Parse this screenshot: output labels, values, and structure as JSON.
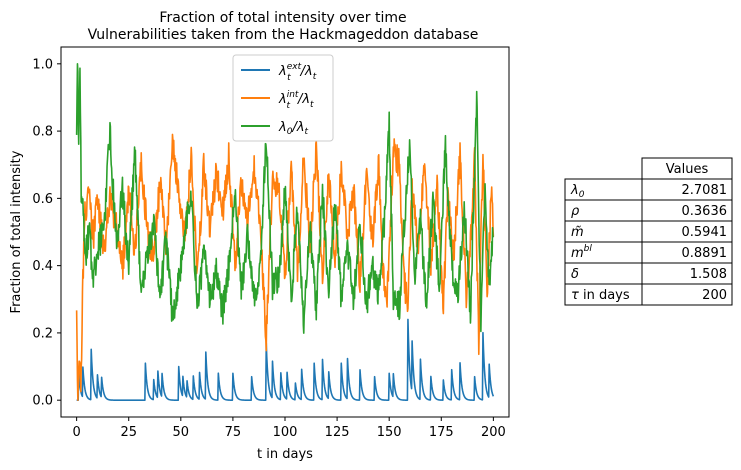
{
  "chart_data": {
    "type": "line",
    "title": "Fraction of total intensity over time",
    "subtitle": "Vulnerabilities taken from the Hackmageddon database",
    "xlabel": "t in days",
    "ylabel": "Fraction of total intensity",
    "xlim": [
      -7.5,
      207.5
    ],
    "ylim": [
      -0.05,
      1.05
    ],
    "xticks": [
      0,
      25,
      50,
      75,
      100,
      125,
      150,
      175,
      200
    ],
    "yticks": [
      0.0,
      0.2,
      0.4,
      0.6,
      0.8,
      1.0
    ],
    "xtick_labels": [
      "0",
      "25",
      "50",
      "75",
      "100",
      "125",
      "150",
      "175",
      "200"
    ],
    "ytick_labels": [
      "0.0",
      "0.2",
      "0.4",
      "0.6",
      "0.8",
      "1.0"
    ],
    "grid": false,
    "legend_position": "top-center",
    "series": [
      {
        "name": "ext",
        "label_main": "λ",
        "label_sup": "ext",
        "label_sub": "t",
        "label_tail": "/λ",
        "label_tail_sub": "t",
        "color": "#1f77b4",
        "spikes": [
          [
            1,
            0.08
          ],
          [
            3,
            0.09
          ],
          [
            7,
            0.15
          ],
          [
            10,
            0.07
          ],
          [
            12,
            0.06
          ],
          [
            33,
            0.11
          ],
          [
            37,
            0.06
          ],
          [
            39,
            0.08
          ],
          [
            41,
            0.07
          ],
          [
            49,
            0.1
          ],
          [
            51,
            0.06
          ],
          [
            53,
            0.05
          ],
          [
            56,
            0.07
          ],
          [
            59,
            0.08
          ],
          [
            62,
            0.14
          ],
          [
            68,
            0.08
          ],
          [
            75,
            0.08
          ],
          [
            84,
            0.07
          ],
          [
            91,
            0.17
          ],
          [
            94,
            0.11
          ],
          [
            98,
            0.08
          ],
          [
            101,
            0.08
          ],
          [
            105,
            0.05
          ],
          [
            108,
            0.09
          ],
          [
            114,
            0.11
          ],
          [
            118,
            0.12
          ],
          [
            121,
            0.08
          ],
          [
            127,
            0.11
          ],
          [
            130,
            0.12
          ],
          [
            136,
            0.09
          ],
          [
            143,
            0.07
          ],
          [
            150,
            0.08
          ],
          [
            152,
            0.07
          ],
          [
            159,
            0.24
          ],
          [
            161,
            0.15
          ],
          [
            165,
            0.12
          ],
          [
            170,
            0.07
          ],
          [
            176,
            0.06
          ],
          [
            180,
            0.09
          ],
          [
            184,
            0.11
          ],
          [
            191,
            0.07
          ],
          [
            195,
            0.2
          ],
          [
            198,
            0.1
          ]
        ]
      },
      {
        "name": "int",
        "label_main": "λ",
        "label_sup": "int",
        "label_sub": "t",
        "label_tail": "/λ",
        "label_tail_sub": "t",
        "color": "#ff7f0e",
        "anchors": [
          [
            0,
            0.24
          ],
          [
            0.6,
            0.0
          ],
          [
            1.2,
            0.12
          ],
          [
            2,
            0.02
          ],
          [
            3,
            0.35
          ],
          [
            4,
            0.55
          ],
          [
            6,
            0.62
          ],
          [
            8,
            0.48
          ],
          [
            10,
            0.6
          ],
          [
            13,
            0.44
          ],
          [
            16,
            0.6
          ],
          [
            19,
            0.52
          ],
          [
            22,
            0.39
          ],
          [
            25,
            0.62
          ],
          [
            28,
            0.44
          ],
          [
            31,
            0.7
          ],
          [
            34,
            0.5
          ],
          [
            37,
            0.42
          ],
          [
            40,
            0.65
          ],
          [
            43,
            0.46
          ],
          [
            46,
            0.77
          ],
          [
            49,
            0.62
          ],
          [
            52,
            0.48
          ],
          [
            55,
            0.72
          ],
          [
            58,
            0.36
          ],
          [
            61,
            0.7
          ],
          [
            64,
            0.5
          ],
          [
            67,
            0.68
          ],
          [
            70,
            0.55
          ],
          [
            73,
            0.72
          ],
          [
            76,
            0.4
          ],
          [
            79,
            0.66
          ],
          [
            82,
            0.53
          ],
          [
            85,
            0.7
          ],
          [
            88,
            0.53
          ],
          [
            91,
            0.18
          ],
          [
            94,
            0.66
          ],
          [
            97,
            0.64
          ],
          [
            100,
            0.36
          ],
          [
            103,
            0.7
          ],
          [
            106,
            0.38
          ],
          [
            109,
            0.72
          ],
          [
            112,
            0.46
          ],
          [
            115,
            0.75
          ],
          [
            118,
            0.36
          ],
          [
            121,
            0.67
          ],
          [
            124,
            0.42
          ],
          [
            127,
            0.68
          ],
          [
            130,
            0.5
          ],
          [
            133,
            0.62
          ],
          [
            136,
            0.35
          ],
          [
            139,
            0.66
          ],
          [
            142,
            0.48
          ],
          [
            145,
            0.7
          ],
          [
            147,
            0.4
          ],
          [
            149,
            0.3
          ],
          [
            152,
            0.74
          ],
          [
            155,
            0.7
          ],
          [
            157,
            0.36
          ],
          [
            159,
            0.28
          ],
          [
            161,
            0.64
          ],
          [
            164,
            0.43
          ],
          [
            167,
            0.72
          ],
          [
            170,
            0.4
          ],
          [
            173,
            0.64
          ],
          [
            176,
            0.27
          ],
          [
            178,
            0.6
          ],
          [
            181,
            0.44
          ],
          [
            184,
            0.72
          ],
          [
            187,
            0.3
          ],
          [
            189,
            0.47
          ],
          [
            191,
            0.73
          ],
          [
            193,
            0.18
          ],
          [
            195,
            0.75
          ],
          [
            197,
            0.3
          ],
          [
            199,
            0.62
          ],
          [
            200,
            0.5
          ]
        ]
      },
      {
        "name": "base",
        "label_main": "λ",
        "label_sub": "0",
        "label_tail": "/λ",
        "label_tail_sub": "t",
        "color": "#2ca02c",
        "anchors": [
          [
            0,
            0.76
          ],
          [
            0.4,
            1.0
          ],
          [
            1,
            0.8
          ],
          [
            1.6,
            0.98
          ],
          [
            2.2,
            0.62
          ],
          [
            3,
            0.58
          ],
          [
            4,
            0.42
          ],
          [
            6,
            0.5
          ],
          [
            8,
            0.36
          ],
          [
            10,
            0.45
          ],
          [
            13,
            0.5
          ],
          [
            16,
            0.8
          ],
          [
            19,
            0.46
          ],
          [
            22,
            0.62
          ],
          [
            25,
            0.4
          ],
          [
            28,
            0.75
          ],
          [
            31,
            0.3
          ],
          [
            34,
            0.44
          ],
          [
            37,
            0.52
          ],
          [
            40,
            0.3
          ],
          [
            43,
            0.48
          ],
          [
            46,
            0.24
          ],
          [
            49,
            0.36
          ],
          [
            52,
            0.5
          ],
          [
            55,
            0.62
          ],
          [
            58,
            0.26
          ],
          [
            61,
            0.45
          ],
          [
            64,
            0.3
          ],
          [
            67,
            0.38
          ],
          [
            70,
            0.26
          ],
          [
            73,
            0.4
          ],
          [
            76,
            0.62
          ],
          [
            79,
            0.33
          ],
          [
            82,
            0.48
          ],
          [
            85,
            0.3
          ],
          [
            88,
            0.4
          ],
          [
            91,
            0.78
          ],
          [
            94,
            0.34
          ],
          [
            97,
            0.36
          ],
          [
            100,
            0.62
          ],
          [
            103,
            0.3
          ],
          [
            106,
            0.58
          ],
          [
            109,
            0.24
          ],
          [
            112,
            0.5
          ],
          [
            115,
            0.28
          ],
          [
            118,
            0.62
          ],
          [
            121,
            0.32
          ],
          [
            124,
            0.58
          ],
          [
            127,
            0.3
          ],
          [
            130,
            0.45
          ],
          [
            133,
            0.3
          ],
          [
            136,
            0.52
          ],
          [
            139,
            0.28
          ],
          [
            142,
            0.4
          ],
          [
            145,
            0.32
          ],
          [
            148,
            0.56
          ],
          [
            150,
            0.82
          ],
          [
            152,
            0.3
          ],
          [
            155,
            0.28
          ],
          [
            158,
            0.6
          ],
          [
            160,
            0.78
          ],
          [
            162,
            0.36
          ],
          [
            165,
            0.54
          ],
          [
            168,
            0.28
          ],
          [
            171,
            0.6
          ],
          [
            174,
            0.32
          ],
          [
            177,
            0.76
          ],
          [
            180,
            0.4
          ],
          [
            183,
            0.3
          ],
          [
            186,
            0.58
          ],
          [
            189,
            0.26
          ],
          [
            192,
            0.9
          ],
          [
            194,
            0.24
          ],
          [
            196,
            0.62
          ],
          [
            198,
            0.36
          ],
          [
            200,
            0.5
          ]
        ]
      }
    ]
  },
  "table": {
    "header": "Values",
    "rows": [
      {
        "param_main": "λ",
        "param_sub": "0",
        "value": "2.7081"
      },
      {
        "param_main": "ρ",
        "value": "0.3636"
      },
      {
        "param_main": "m̃",
        "value": "0.5941"
      },
      {
        "param_main": "m",
        "param_sup": "bl",
        "value": "0.8891"
      },
      {
        "param_main": "δ",
        "value": "1.508"
      },
      {
        "param_main": "τ",
        "param_text": " in days",
        "value": "200"
      }
    ]
  }
}
